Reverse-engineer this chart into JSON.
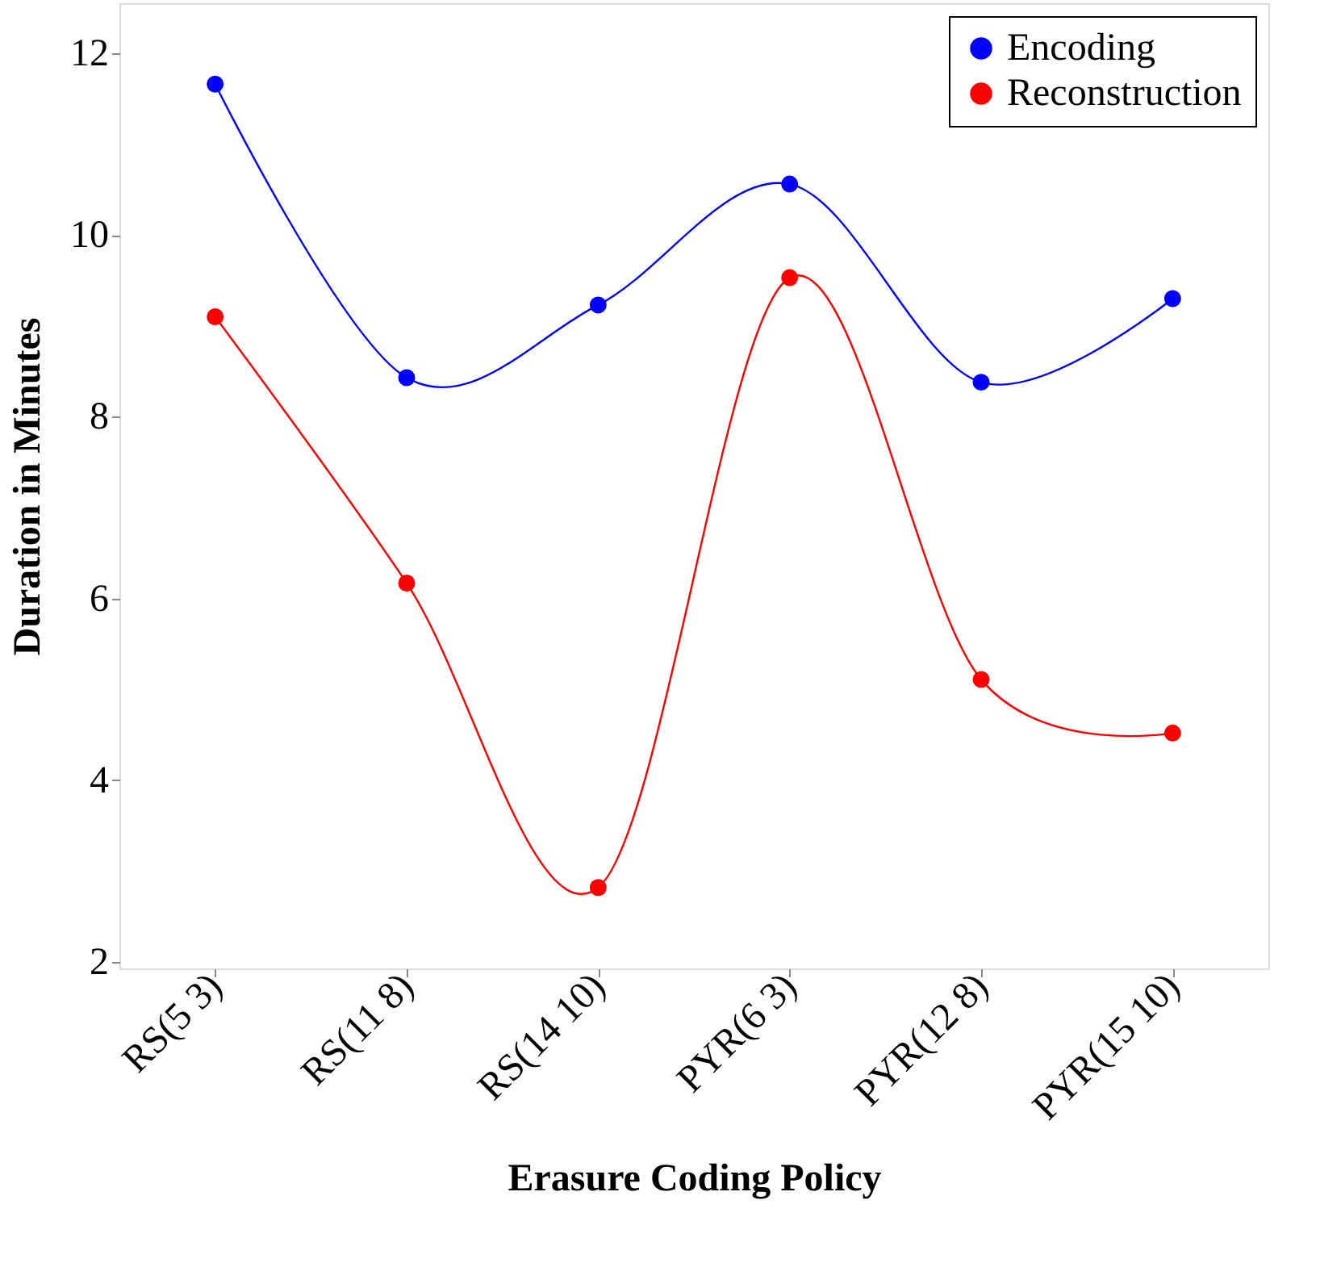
{
  "chart_data": {
    "type": "line",
    "xlabel": "Erasure Coding Policy",
    "ylabel": "Duration in Minutes",
    "categories": [
      "RS(5 3)",
      "RS(11 8)",
      "RS(14 10)",
      "PYR(6 3)",
      "PYR(12 8)",
      "PYR(15 10)"
    ],
    "series": [
      {
        "name": "Encoding",
        "color": "#0000ff",
        "values": [
          11.66,
          8.43,
          9.23,
          10.56,
          8.38,
          9.3
        ]
      },
      {
        "name": "Reconstruction",
        "color": "#ff0000",
        "values": [
          9.1,
          6.17,
          2.82,
          9.53,
          5.11,
          4.52
        ]
      }
    ],
    "ylim": [
      1.93,
      12.55
    ],
    "yticks": [
      2,
      4,
      6,
      8,
      10,
      12
    ],
    "grid": false,
    "legend": "top right",
    "marker": "circle",
    "line_style": "solid"
  }
}
